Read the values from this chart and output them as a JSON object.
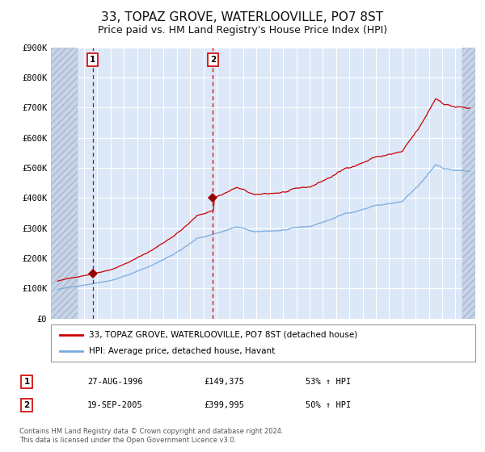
{
  "title": "33, TOPAZ GROVE, WATERLOOVILLE, PO7 8ST",
  "subtitle": "Price paid vs. HM Land Registry's House Price Index (HPI)",
  "title_fontsize": 11,
  "subtitle_fontsize": 9,
  "background_color": "#ffffff",
  "plot_bg_color": "#dce8f8",
  "hatch_color": "#c8d4e4",
  "red_line_color": "#cc0000",
  "blue_line_color": "#7aaadd",
  "grid_color": "#ffffff",
  "sale1": {
    "date_num": 1996.65,
    "price": 149375,
    "label": "1"
  },
  "sale2": {
    "date_num": 2005.72,
    "price": 399995,
    "label": "2"
  },
  "vline_color": "#cc0000",
  "marker_color": "#990000",
  "ylim": [
    0,
    900000
  ],
  "xlim_start": 1993.5,
  "xlim_end": 2025.5,
  "hatch_left_end": 1995.5,
  "hatch_right_start": 2024.5,
  "yticks": [
    0,
    100000,
    200000,
    300000,
    400000,
    500000,
    600000,
    700000,
    800000,
    900000
  ],
  "ytick_labels": [
    "£0",
    "£100K",
    "£200K",
    "£300K",
    "£400K",
    "£500K",
    "£600K",
    "£700K",
    "£800K",
    "£900K"
  ],
  "xticks": [
    1994,
    1995,
    1996,
    1997,
    1998,
    1999,
    2000,
    2001,
    2002,
    2003,
    2004,
    2005,
    2006,
    2007,
    2008,
    2009,
    2010,
    2011,
    2012,
    2013,
    2014,
    2015,
    2016,
    2017,
    2018,
    2019,
    2020,
    2021,
    2022,
    2023,
    2024,
    2025
  ],
  "legend_line1": "33, TOPAZ GROVE, WATERLOOVILLE, PO7 8ST (detached house)",
  "legend_line2": "HPI: Average price, detached house, Havant",
  "table_rows": [
    {
      "num": "1",
      "date": "27-AUG-1996",
      "price": "£149,375",
      "change": "53% ↑ HPI"
    },
    {
      "num": "2",
      "date": "19-SEP-2005",
      "price": "£399,995",
      "change": "50% ↑ HPI"
    }
  ],
  "footnote": "Contains HM Land Registry data © Crown copyright and database right 2024.\nThis data is licensed under the Open Government Licence v3.0."
}
